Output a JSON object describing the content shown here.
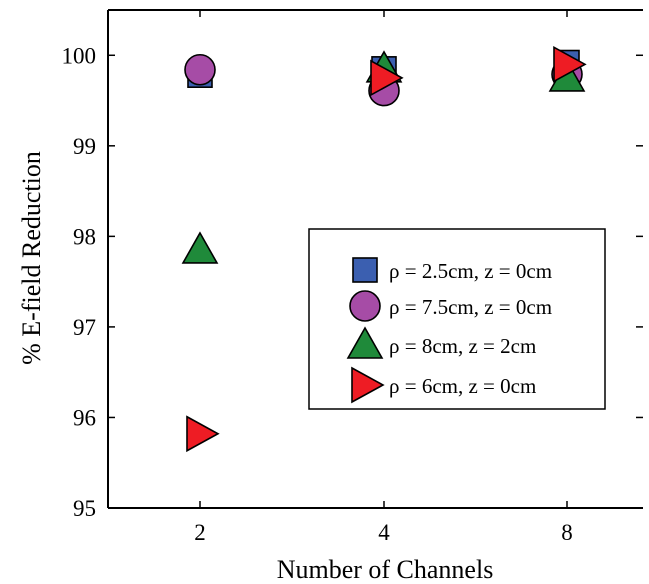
{
  "chart_data": {
    "type": "scatter",
    "title": "",
    "xlabel": "Number of Channels",
    "ylabel": "% E-field Reduction",
    "categories": [
      "2",
      "4",
      "8"
    ],
    "ylim": [
      95,
      100.5
    ],
    "yticks": [
      95,
      96,
      97,
      98,
      99,
      100
    ],
    "grid": false,
    "legend_position": "center-right",
    "series": [
      {
        "name": "ρ = 2.5cm, z = 0cm",
        "marker": "square",
        "color": "#3b5fb0",
        "values": [
          99.78,
          99.85,
          99.92
        ]
      },
      {
        "name": "ρ = 7.5cm, z = 0cm",
        "marker": "circle",
        "color": "#a64ca6",
        "values": [
          99.84,
          99.61,
          99.79
        ]
      },
      {
        "name": "ρ = 8cm, z = 2cm",
        "marker": "triangle-up",
        "color": "#1f8a3a",
        "values": [
          97.85,
          99.85,
          99.75
        ]
      },
      {
        "name": "ρ = 6cm, z = 0cm",
        "marker": "triangle-right",
        "color": "#ee1c24",
        "values": [
          95.82,
          99.75,
          99.9
        ]
      }
    ]
  }
}
